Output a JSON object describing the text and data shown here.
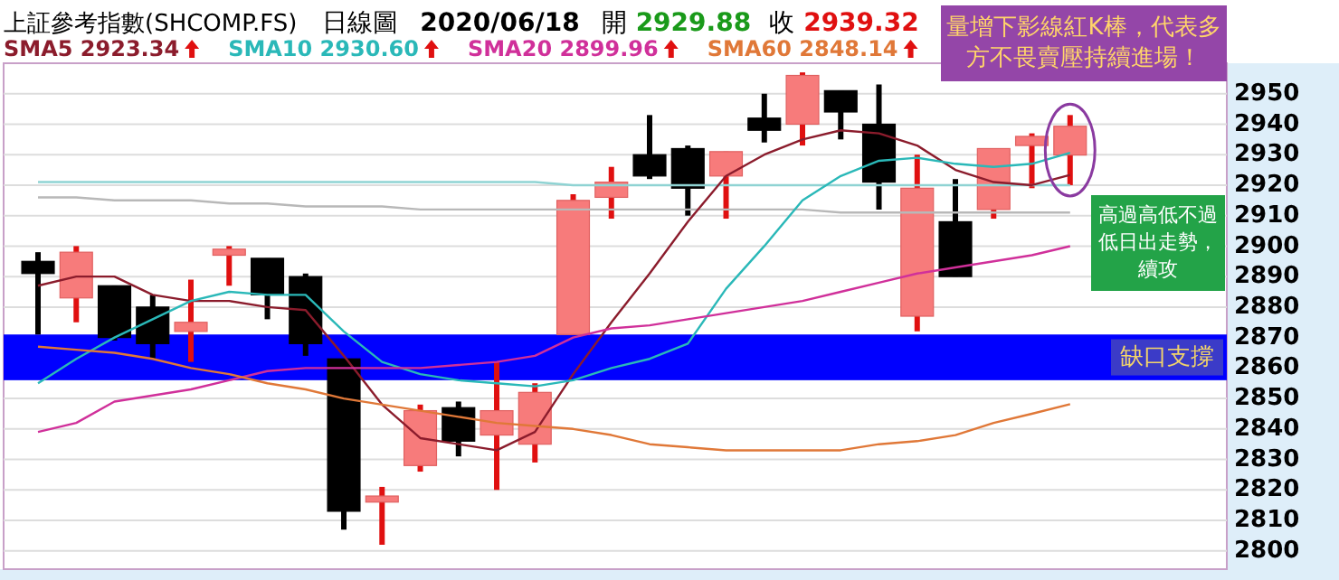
{
  "chart_data": {
    "type": "candlestick",
    "title": "上証參考指數(SHCOMP.FS)",
    "subtitle": "日線圖",
    "categories": [
      null,
      null,
      null,
      null,
      null,
      null,
      null,
      null,
      null,
      null,
      null,
      null,
      null,
      null,
      null,
      null,
      null,
      null,
      null,
      null,
      null,
      null,
      null,
      null,
      null,
      null,
      null,
      null
    ],
    "ohlc": [
      [
        2895,
        2898,
        2871,
        2891
      ],
      [
        2883,
        2900,
        2875,
        2898
      ],
      [
        2887,
        2887,
        2869,
        2870
      ],
      [
        2880,
        2884,
        2863,
        2868
      ],
      [
        2872,
        2889,
        2862,
        2875
      ],
      [
        2897,
        2900,
        2887,
        2899
      ],
      [
        2896,
        2896,
        2876,
        2884
      ],
      [
        2890,
        2891,
        2864,
        2868
      ],
      [
        2863,
        2863,
        2807,
        2813
      ],
      [
        2816,
        2821,
        2802,
        2818
      ],
      [
        2828,
        2848,
        2826,
        2846
      ],
      [
        2847,
        2849,
        2831,
        2836
      ],
      [
        2838,
        2862,
        2820,
        2846
      ],
      [
        2835,
        2855,
        2829,
        2852
      ],
      [
        2871,
        2917,
        2871,
        2915
      ],
      [
        2916,
        2926,
        2909,
        2921
      ],
      [
        2930,
        2943,
        2922,
        2923
      ],
      [
        2932,
        2933,
        2910,
        2919
      ],
      [
        2923,
        2931,
        2909,
        2931
      ],
      [
        2942,
        2950,
        2934,
        2938
      ],
      [
        2940,
        2957,
        2933,
        2956
      ],
      [
        2951,
        2951,
        2935,
        2944
      ],
      [
        2940,
        2953,
        2912,
        2921
      ],
      [
        2877,
        2930,
        2872,
        2919
      ],
      [
        2908,
        2922,
        2890,
        2890
      ],
      [
        2912,
        2932,
        2909,
        2932
      ],
      [
        2933,
        2937,
        2919,
        2936
      ],
      [
        2929.88,
        2943,
        2920,
        2939.32
      ]
    ],
    "colors": [
      "#000000",
      "#f77b7b",
      "#000000",
      "#000000",
      "#f77b7b",
      "#f77b7b",
      "#000000",
      "#000000",
      "#000000",
      "#f77b7b",
      "#f77b7b",
      "#000000",
      "#f77b7b",
      "#f77b7b",
      "#f77b7b",
      "#f77b7b",
      "#000000",
      "#000000",
      "#f77b7b",
      "#000000",
      "#f77b7b",
      "#000000",
      "#000000",
      "#f77b7b",
      "#000000",
      "#f77b7b",
      "#f77b7b",
      "#f77b7b"
    ],
    "series": [
      {
        "type": "line",
        "color": "#8fd3d3",
        "values": [
          2921,
          2921,
          2921,
          2921,
          2921,
          2921,
          2921,
          2921,
          2921,
          2921,
          2921,
          2921,
          2921,
          2921,
          2920,
          2920,
          2920,
          2920,
          2920,
          2920,
          2920,
          2920,
          2920,
          2920,
          2920,
          2920,
          2920,
          2920
        ]
      },
      {
        "type": "line",
        "color": "#b8b8b8",
        "values": [
          2916,
          2916,
          2915,
          2915,
          2915,
          2914,
          2914,
          2913,
          2913,
          2913,
          2912,
          2912,
          2912,
          2912,
          2912,
          2912,
          2912,
          2912,
          2912,
          2912,
          2912,
          2911,
          2911,
          2911,
          2911,
          2911,
          2911,
          2911
        ]
      },
      {
        "type": "line",
        "name": "SMA5 2923.34",
        "color": "#8b1c2c",
        "values": [
          2887,
          2890,
          2890,
          2884,
          2882,
          2882,
          2880,
          2879,
          2864,
          2848,
          2837,
          2835,
          2833,
          2839,
          2858,
          2875,
          2891,
          2908,
          2923,
          2930,
          2935,
          2938,
          2937,
          2933,
          2925,
          2921,
          2920,
          2923.34
        ]
      },
      {
        "type": "line",
        "name": "SMA10 2930.60",
        "color": "#2ab8b8",
        "values": [
          2855,
          2863,
          2870,
          2876,
          2882,
          2885,
          2884,
          2884,
          2872,
          2862,
          2858,
          2856,
          2855,
          2854,
          2856,
          2860,
          2863,
          2868,
          2886,
          2900,
          2915,
          2923,
          2928,
          2929,
          2927,
          2926,
          2927,
          2930.6
        ]
      },
      {
        "type": "line",
        "name": "SMA20 2899.96",
        "color": "#d0309a",
        "values": [
          2839,
          2842,
          2849,
          2851,
          2853,
          2856,
          2859,
          2860,
          2860,
          2860,
          2860,
          2861,
          2862,
          2864,
          2870,
          2873,
          2874,
          2876,
          2878,
          2880,
          2882,
          2885,
          2888,
          2891,
          2893,
          2895,
          2897,
          2899.96
        ]
      },
      {
        "type": "line",
        "name": "SMA60 2848.14",
        "color": "#e07838",
        "values": [
          2867,
          2866,
          2865,
          2863,
          2860,
          2858,
          2855,
          2853,
          2850,
          2848,
          2846,
          2844,
          2842,
          2841,
          2840,
          2838,
          2835,
          2834,
          2833,
          2833,
          2833,
          2833,
          2835,
          2836,
          2838,
          2842,
          2845,
          2848.14
        ]
      }
    ],
    "ylim": [
      2794,
      2960
    ],
    "yticks": [
      2800,
      2810,
      2820,
      2830,
      2840,
      2850,
      2860,
      2870,
      2880,
      2890,
      2900,
      2910,
      2920,
      2930,
      2940,
      2950
    ],
    "grid": "y",
    "legend": "top",
    "tick_labels": "y",
    "bands": [
      {
        "axis": "y",
        "from": 2856,
        "to": 2871,
        "label": "缺口支撐",
        "color": "#0000ff"
      }
    ],
    "annotations": [
      "2020/06/18",
      "開",
      "2929.88",
      "收",
      "2939.32",
      "量增下影線紅K棒，代表多方不畏賣壓持續進場！",
      "高過高低不過低日出走勢，續攻"
    ]
  }
}
